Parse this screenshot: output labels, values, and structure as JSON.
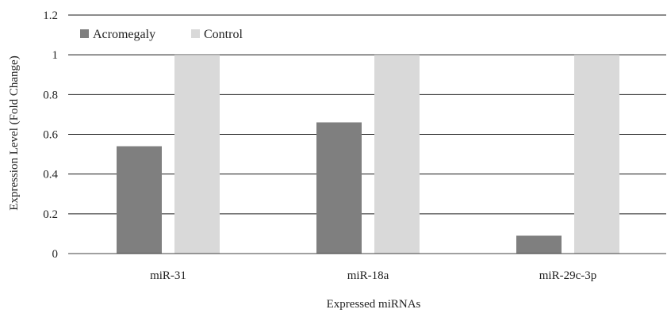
{
  "chart_data": {
    "type": "bar",
    "title": "",
    "xlabel": "Expressed miRNAs",
    "ylabel": "Expression Level (Fold Change)",
    "ylim": [
      0,
      1.2
    ],
    "yticks": [
      "0",
      "0.2",
      "0.4",
      "0.6",
      "0.8",
      "1",
      "1.2"
    ],
    "categories": [
      "miR-31",
      "miR-18a",
      "miR-29c-3p"
    ],
    "series": [
      {
        "name": "Acromegaly",
        "values": [
          0.54,
          0.66,
          0.09
        ],
        "color": "#7f7f7f"
      },
      {
        "name": "Control",
        "values": [
          1.0,
          1.0,
          1.0
        ],
        "color": "#d9d9d9"
      }
    ],
    "grid": true,
    "legend_position": "top-left"
  }
}
